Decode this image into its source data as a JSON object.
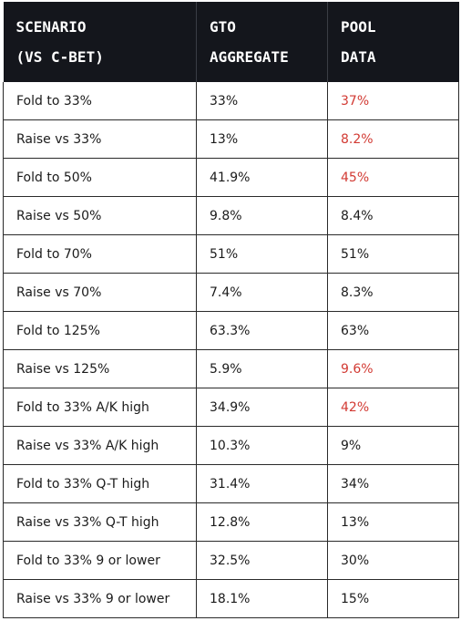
{
  "colors": {
    "header_bg": "#14161c",
    "header_text": "#ffffff",
    "highlight": "#d23a33",
    "body_text": "#1b1b1b"
  },
  "table": {
    "headers": [
      [
        "SCENARIO",
        "(VS C-BET)"
      ],
      [
        "GTO",
        "AGGREGATE"
      ],
      [
        "POOL",
        "DATA"
      ]
    ],
    "rows": [
      {
        "scenario": "Fold to 33%",
        "gto": "33%",
        "pool": "37%",
        "pool_highlight": true
      },
      {
        "scenario": "Raise vs 33%",
        "gto": "13%",
        "pool": "8.2%",
        "pool_highlight": true
      },
      {
        "scenario": "Fold to 50%",
        "gto": "41.9%",
        "pool": "45%",
        "pool_highlight": true
      },
      {
        "scenario": "Raise vs 50%",
        "gto": "9.8%",
        "pool": "8.4%",
        "pool_highlight": false
      },
      {
        "scenario": "Fold to 70%",
        "gto": "51%",
        "pool": "51%",
        "pool_highlight": false
      },
      {
        "scenario": "Raise vs 70%",
        "gto": "7.4%",
        "pool": "8.3%",
        "pool_highlight": false
      },
      {
        "scenario": "Fold to 125%",
        "gto": "63.3%",
        "pool": "63%",
        "pool_highlight": false
      },
      {
        "scenario": "Raise vs 125%",
        "gto": "5.9%",
        "pool": "9.6%",
        "pool_highlight": true
      },
      {
        "scenario": "Fold to 33% A/K high",
        "gto": "34.9%",
        "pool": "42%",
        "pool_highlight": true
      },
      {
        "scenario": "Raise vs 33% A/K high",
        "gto": "10.3%",
        "pool": "9%",
        "pool_highlight": false
      },
      {
        "scenario": "Fold to 33% Q-T high",
        "gto": "31.4%",
        "pool": "34%",
        "pool_highlight": false
      },
      {
        "scenario": "Raise vs 33% Q-T high",
        "gto": "12.8%",
        "pool": "13%",
        "pool_highlight": false
      },
      {
        "scenario": "Fold to 33% 9 or lower",
        "gto": "32.5%",
        "pool": "30%",
        "pool_highlight": false
      },
      {
        "scenario": "Raise vs 33% 9 or lower",
        "gto": "18.1%",
        "pool": "15%",
        "pool_highlight": false
      }
    ]
  }
}
